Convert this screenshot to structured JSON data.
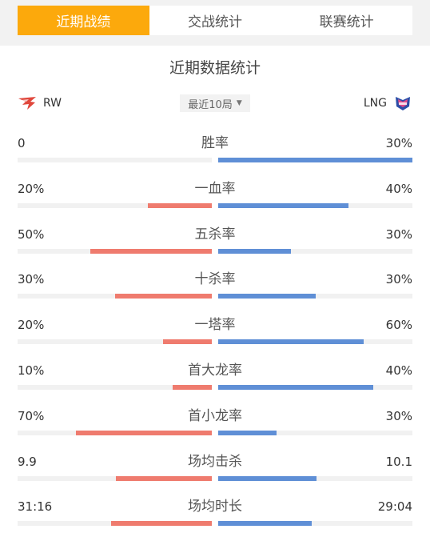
{
  "tabs": [
    {
      "label": "近期战绩",
      "active": true
    },
    {
      "label": "交战统计",
      "active": false
    },
    {
      "label": "联赛统计",
      "active": false
    }
  ],
  "section_title": "近期数据统计",
  "teams": {
    "left": {
      "name": "RW",
      "logo": "rw-logo-icon",
      "color": "#e0473c"
    },
    "right": {
      "name": "LNG",
      "logo": "lng-logo-icon",
      "color": "#2b4ea8"
    }
  },
  "filter": {
    "label": "最近10局",
    "caret": "▼"
  },
  "colors": {
    "accent": "#fca90c",
    "left_bar": "#ef7b6e",
    "right_bar": "#5f8fd6"
  },
  "stats": [
    {
      "label": "胜率",
      "left": "0",
      "right": "30%",
      "left_ratio": 0,
      "right_ratio": 1
    },
    {
      "label": "一血率",
      "left": "20%",
      "right": "40%",
      "left_ratio": 0.33,
      "right_ratio": 0.67
    },
    {
      "label": "五杀率",
      "left": "50%",
      "right": "30%",
      "left_ratio": 0.625,
      "right_ratio": 0.375
    },
    {
      "label": "十杀率",
      "left": "30%",
      "right": "30%",
      "left_ratio": 0.5,
      "right_ratio": 0.5
    },
    {
      "label": "一塔率",
      "left": "20%",
      "right": "60%",
      "left_ratio": 0.25,
      "right_ratio": 0.75
    },
    {
      "label": "首大龙率",
      "left": "10%",
      "right": "40%",
      "left_ratio": 0.2,
      "right_ratio": 0.8
    },
    {
      "label": "首小龙率",
      "left": "70%",
      "right": "30%",
      "left_ratio": 0.7,
      "right_ratio": 0.3
    },
    {
      "label": "场均击杀",
      "left": "9.9",
      "right": "10.1",
      "left_ratio": 0.495,
      "right_ratio": 0.505
    },
    {
      "label": "场均时长",
      "left": "31:16",
      "right": "29:04",
      "left_ratio": 0.518,
      "right_ratio": 0.482
    }
  ]
}
